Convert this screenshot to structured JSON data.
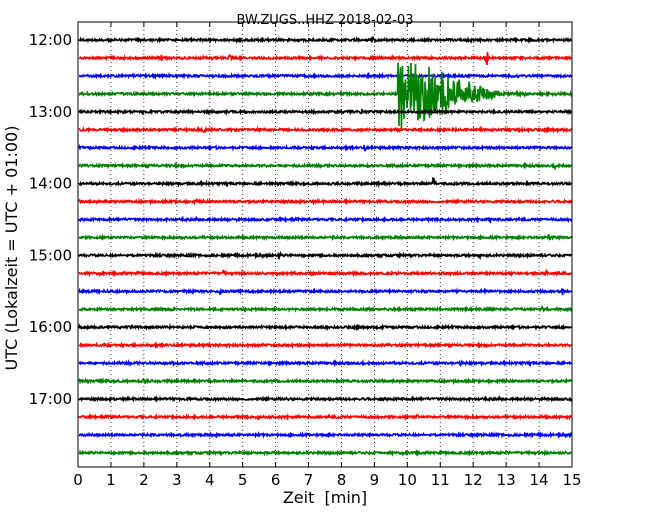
{
  "chart_data": {
    "type": "line",
    "title": "BW.ZUGS..HHZ 2018-02-03",
    "xlabel": "Zeit  [min]",
    "ylabel": "UTC (Lokalzeit = UTC + 01:00)",
    "xlim": [
      0,
      15
    ],
    "x_ticks": [
      0,
      1,
      2,
      3,
      4,
      5,
      6,
      7,
      8,
      9,
      10,
      11,
      12,
      13,
      14,
      15
    ],
    "y_tick_labels": [
      "12:00",
      "13:00",
      "14:00",
      "15:00",
      "16:00",
      "17:00"
    ],
    "y_tick_trace_index": [
      0,
      4,
      8,
      12,
      16,
      20
    ],
    "grid": "vertical dotted at each minute",
    "trace_colors": [
      "#000000",
      "#ff0000",
      "#0000ff",
      "#008000"
    ],
    "traces": [
      {
        "start": "12:00",
        "color": "#000000",
        "events": [
          {
            "t": 8.95,
            "amp": 0.4
          }
        ]
      },
      {
        "start": "12:15",
        "color": "#ff0000",
        "events": [
          {
            "t": 4.6,
            "amp": 0.45
          },
          {
            "t": 12.4,
            "amp": 1.3
          }
        ]
      },
      {
        "start": "12:30",
        "color": "#0000ff",
        "events": [
          {
            "t": 8.8,
            "amp": 0.3
          }
        ]
      },
      {
        "start": "12:45",
        "color": "#008000",
        "events": [
          {
            "t": 9.7,
            "amp": 4.5,
            "dur": 6.5
          }
        ]
      },
      {
        "start": "13:00",
        "color": "#000000",
        "events": [
          {
            "t": 8.6,
            "amp": 0.4
          }
        ]
      },
      {
        "start": "13:15",
        "color": "#ff0000",
        "events": [
          {
            "t": 3.8,
            "amp": 0.3
          }
        ]
      },
      {
        "start": "13:30",
        "color": "#0000ff",
        "events": [
          {
            "t": 8.7,
            "amp": 0.3
          }
        ]
      },
      {
        "start": "13:45",
        "color": "#008000",
        "events": [
          {
            "t": 14.5,
            "amp": 0.3
          }
        ]
      },
      {
        "start": "14:00",
        "color": "#000000",
        "events": [
          {
            "t": 9.1,
            "amp": 0.3
          },
          {
            "t": 10.8,
            "amp": 1.0
          }
        ]
      },
      {
        "start": "14:15",
        "color": "#ff0000",
        "events": [
          {
            "t": 3.6,
            "amp": 0.2
          }
        ]
      },
      {
        "start": "14:30",
        "color": "#0000ff",
        "events": [
          {
            "t": 12.5,
            "amp": 0.3
          }
        ]
      },
      {
        "start": "14:45",
        "color": "#008000",
        "events": [
          {
            "t": 14.3,
            "amp": 0.3
          }
        ]
      },
      {
        "start": "15:00",
        "color": "#000000",
        "events": [
          {
            "t": 6.1,
            "amp": 0.3
          },
          {
            "t": 12.2,
            "amp": 0.3
          }
        ]
      },
      {
        "start": "15:15",
        "color": "#ff0000",
        "events": [
          {
            "t": 4.4,
            "amp": 0.3
          },
          {
            "t": 14.2,
            "amp": 0.3
          }
        ]
      },
      {
        "start": "15:30",
        "color": "#0000ff",
        "events": [
          {
            "t": 4.3,
            "amp": 0.35
          },
          {
            "t": 14.7,
            "amp": 0.35
          }
        ]
      },
      {
        "start": "15:45",
        "color": "#008000",
        "events": [
          {
            "t": 14.1,
            "amp": 0.3
          }
        ]
      },
      {
        "start": "16:00",
        "color": "#000000",
        "events": [
          {
            "t": 12.0,
            "amp": 0.25
          }
        ]
      },
      {
        "start": "16:15",
        "color": "#ff0000",
        "events": []
      },
      {
        "start": "16:30",
        "color": "#0000ff",
        "events": [
          {
            "t": 2.9,
            "amp": 0.25
          },
          {
            "t": 11.6,
            "amp": 0.25
          }
        ]
      },
      {
        "start": "16:45",
        "color": "#008000",
        "events": [
          {
            "t": 2.0,
            "amp": 0.15
          }
        ]
      },
      {
        "start": "17:00",
        "color": "#000000",
        "events": []
      },
      {
        "start": "17:15",
        "color": "#ff0000",
        "events": [
          {
            "t": 5.5,
            "amp": 0.35
          },
          {
            "t": 10.3,
            "amp": 0.2
          }
        ]
      },
      {
        "start": "17:30",
        "color": "#0000ff",
        "events": [
          {
            "t": 4.2,
            "amp": 0.15
          }
        ]
      },
      {
        "start": "17:45",
        "color": "#008000",
        "events": []
      }
    ]
  }
}
